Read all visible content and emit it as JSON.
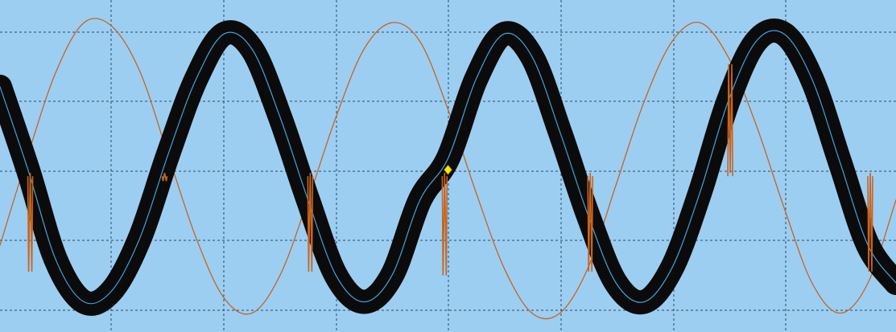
{
  "screen": {
    "background": "#9ccef2",
    "grid_color": "#2b4a66",
    "grid": {
      "vertical_divisions": 8,
      "horizontal_divisions": 4,
      "style": "dashed"
    }
  },
  "chart_data": {
    "type": "line",
    "xlabel": "",
    "ylabel": "",
    "grid": true,
    "xlim": [
      0,
      8
    ],
    "ylim": [
      -2.15,
      2.25
    ],
    "series": [
      {
        "color": "#0b0b0b",
        "style": "thick noisy envelope",
        "x": [
          0,
          0.25,
          0.5,
          0.75,
          1.0,
          1.25,
          1.5,
          1.75,
          2.0,
          2.25,
          2.5,
          2.75,
          3.0,
          3.25,
          3.5,
          3.75,
          4.0,
          4.25,
          4.5,
          4.75,
          5.0,
          5.25,
          5.5,
          5.75,
          6.0,
          6.25,
          6.5,
          6.75,
          7.0,
          7.25,
          7.5,
          7.75,
          8.0
        ],
        "y": [
          1.1,
          0.0,
          -1.2,
          -1.75,
          -1.6,
          -0.9,
          0.2,
          1.2,
          1.8,
          1.6,
          0.7,
          -0.4,
          -1.4,
          -1.75,
          -1.4,
          -0.4,
          0.15,
          1.2,
          1.8,
          1.5,
          0.5,
          -0.6,
          -1.5,
          -1.75,
          -1.3,
          -0.3,
          0.9,
          1.7,
          1.8,
          1.2,
          0.1,
          -1.0,
          -1.5
        ]
      },
      {
        "color": "#3fa3e0",
        "style": "thin trace inside envelope",
        "x": [
          0,
          0.25,
          0.5,
          0.75,
          1.0,
          1.25,
          1.5,
          1.75,
          2.0,
          2.25,
          2.5,
          2.75,
          3.0,
          3.25,
          3.5,
          3.75,
          4.0,
          4.25,
          4.5,
          4.75,
          5.0,
          5.25,
          5.5,
          5.75,
          6.0,
          6.25,
          6.5,
          6.75,
          7.0,
          7.25,
          7.5,
          7.75,
          8.0
        ],
        "y": [
          1.1,
          0.0,
          -1.2,
          -1.75,
          -1.6,
          -0.9,
          0.2,
          1.2,
          1.8,
          1.6,
          0.7,
          -0.4,
          -1.4,
          -1.75,
          -1.4,
          -0.4,
          0.15,
          1.2,
          1.8,
          1.5,
          0.5,
          -0.6,
          -1.5,
          -1.75,
          -1.3,
          -0.3,
          0.9,
          1.7,
          1.8,
          1.2,
          0.1,
          -1.0,
          -1.5
        ]
      },
      {
        "color": "#c8651f",
        "style": "thin trace",
        "x": [
          0,
          0.25,
          0.5,
          0.75,
          1.0,
          1.25,
          1.5,
          1.75,
          2.0,
          2.25,
          2.5,
          2.75,
          3.0,
          3.25,
          3.5,
          3.75,
          4.0,
          4.25,
          4.5,
          4.75,
          5.0,
          5.25,
          5.5,
          5.75,
          6.0,
          6.25,
          6.5,
          6.75,
          7.0,
          7.25,
          7.5,
          7.75,
          8.0
        ],
        "y": [
          -1.0,
          0.2,
          1.3,
          1.95,
          1.9,
          1.3,
          0.2,
          -0.9,
          -1.7,
          -1.9,
          -1.4,
          -0.4,
          0.7,
          1.6,
          1.95,
          1.7,
          0.8,
          -0.3,
          -1.3,
          -1.9,
          -1.9,
          -1.3,
          -0.2,
          0.9,
          1.7,
          1.95,
          1.5,
          0.6,
          -0.5,
          -1.5,
          -1.9,
          -1.5,
          -0.4
        ]
      }
    ],
    "spikes": [
      {
        "x": 0.27,
        "y": -1.35
      },
      {
        "x": 1.47,
        "y": -0.15
      },
      {
        "x": 2.77,
        "y": -1.35
      },
      {
        "x": 3.97,
        "y": -1.4
      },
      {
        "x": 5.27,
        "y": -1.35
      },
      {
        "x": 6.52,
        "y": 1.4
      },
      {
        "x": 7.77,
        "y": -1.35
      }
    ],
    "marker": {
      "x": 4.0,
      "y": 0.0,
      "color": "#ffe600",
      "shape": "diamond"
    }
  }
}
